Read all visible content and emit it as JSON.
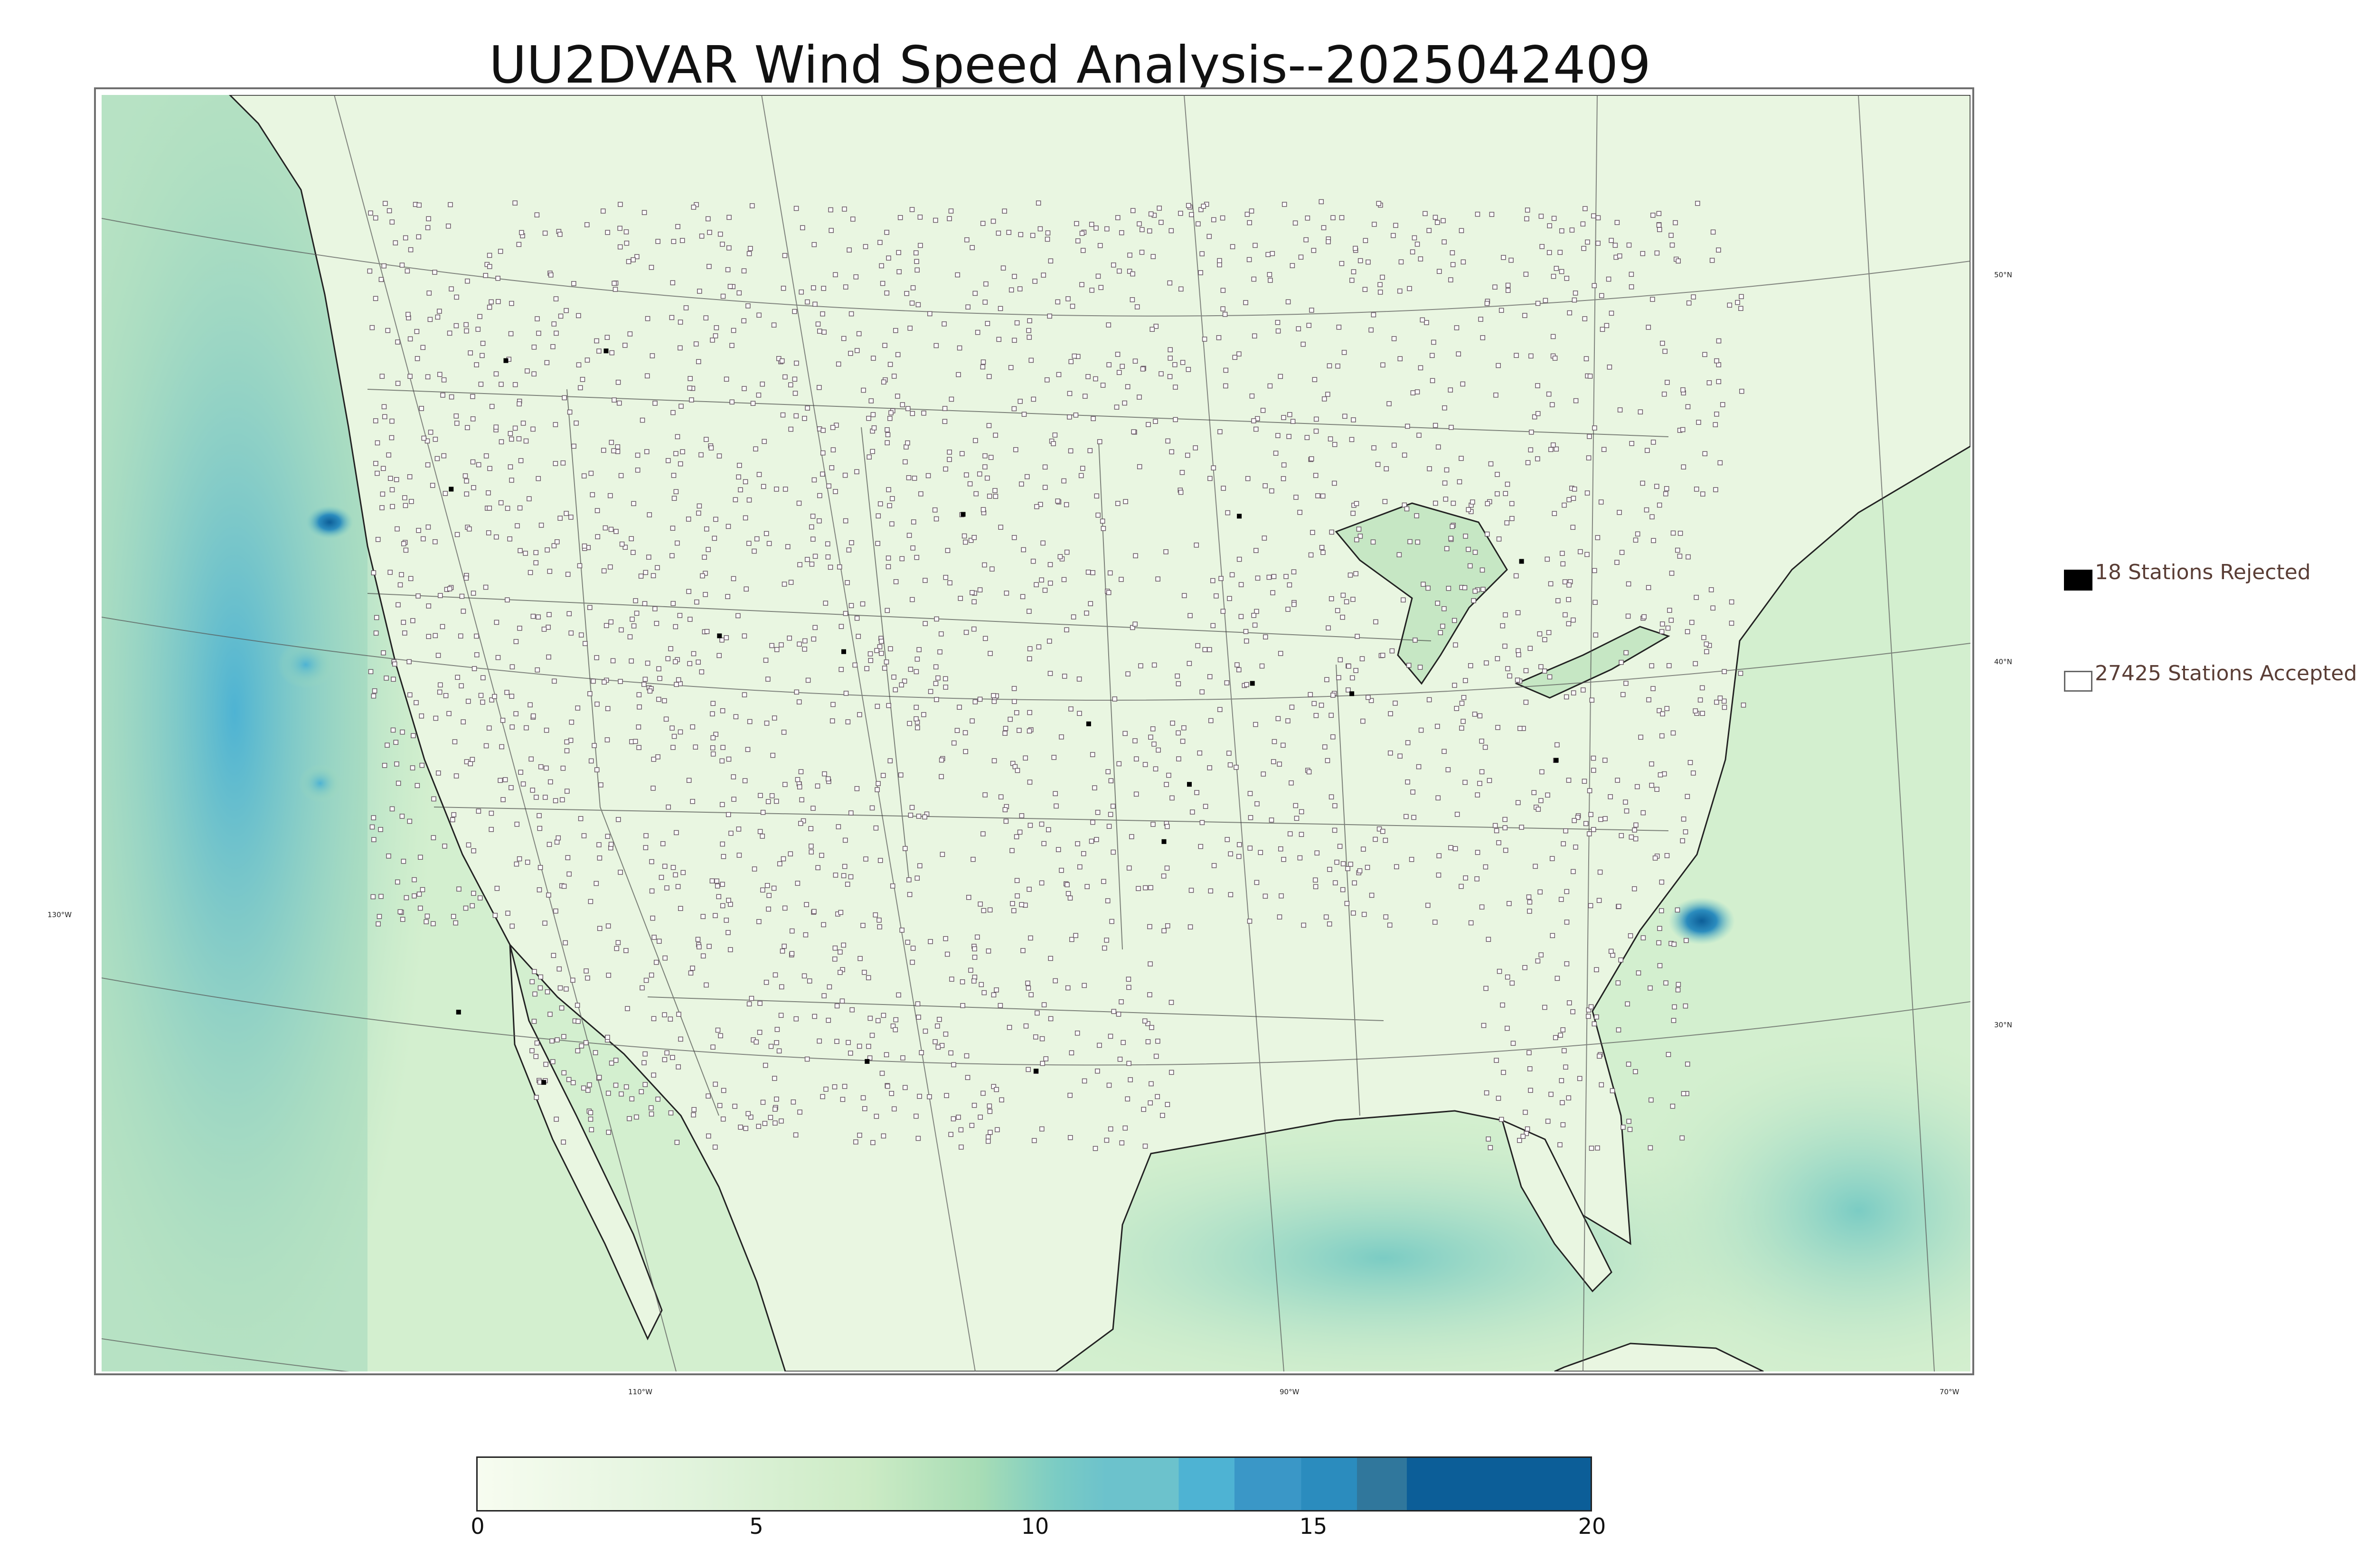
{
  "title": "UU2DVAR Wind Speed Analysis--2025042409",
  "legend": {
    "rejected": {
      "label": "18 Stations Rejected",
      "color": "#000000"
    },
    "accepted": {
      "label": "27425 Stations Accepted",
      "color": "#ffffff"
    }
  },
  "graticule_labels": {
    "lon_110": "110°W",
    "lon_90": "90°W",
    "lon_70": "70°W",
    "lon_130": "130°W",
    "lat_50": "50°N",
    "lat_40": "40°N",
    "lat_30": "30°N"
  },
  "colorbar": {
    "ticks": [
      "0",
      "5",
      "10",
      "15",
      "20"
    ],
    "range": [
      0,
      20
    ],
    "colors": [
      "#f7fcf0",
      "#e0f3db",
      "#ccebc5",
      "#a8ddb5",
      "#7bccc4",
      "#6cc2cc",
      "#4eb3d3",
      "#3a97c7",
      "#2b8cbe",
      "#30779c",
      "#0c5e98"
    ]
  },
  "map_colors": {
    "land": "#e6f4dc",
    "ocean": "#cdeccc",
    "high_wind": "#5fb8cf",
    "peak_wind": "#1f6fb0",
    "station_accepted": "#ffffff",
    "station_rejected": "#000000"
  }
}
